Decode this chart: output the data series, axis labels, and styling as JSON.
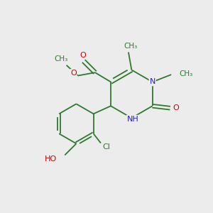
{
  "background_color": "#ececec",
  "bond_color": "#2d7a2d",
  "atom_colors": {
    "O": "#cc0000",
    "N": "#2222cc",
    "Cl": "#2d7a2d",
    "C": "#2d7a2d",
    "H": "#2d7a2d"
  },
  "figsize": [
    3.0,
    3.0
  ],
  "dpi": 100,
  "xlim": [
    0,
    10
  ],
  "ylim": [
    0,
    10
  ]
}
